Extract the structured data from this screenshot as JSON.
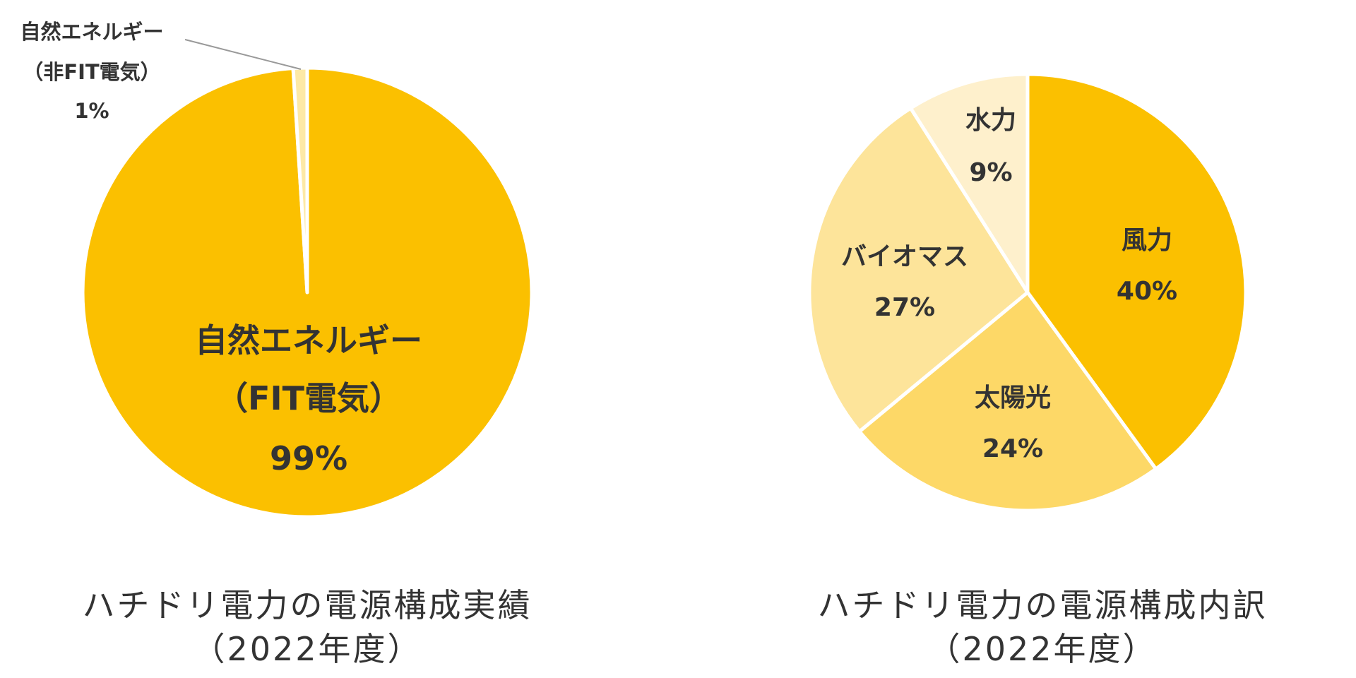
{
  "chart_data": [
    {
      "type": "pie",
      "title": "ハチドリ電力の電源構成実績",
      "subtitle": "（2022年度）",
      "slices": [
        {
          "label_line1": "自然エネルギー",
          "label_line2": "（FIT電気）",
          "value": 99,
          "value_label": "99%",
          "color": "#FBC000"
        },
        {
          "label_line1": "自然エネルギー",
          "label_line2": "（非FIT電気）",
          "value": 1,
          "value_label": "1%",
          "color": "#FDE9A6"
        }
      ]
    },
    {
      "type": "pie",
      "title": "ハチドリ電力の電源構成内訳",
      "subtitle": "（2022年度）",
      "slices": [
        {
          "label": "風力",
          "value": 40,
          "value_label": "40%",
          "color": "#FBC000"
        },
        {
          "label": "太陽光",
          "value": 24,
          "value_label": "24%",
          "color": "#FDD867"
        },
        {
          "label": "バイオマス",
          "value": 27,
          "value_label": "27%",
          "color": "#FDE49A"
        },
        {
          "label": "水力",
          "value": 9,
          "value_label": "9%",
          "color": "#FEF0CC"
        }
      ]
    }
  ]
}
